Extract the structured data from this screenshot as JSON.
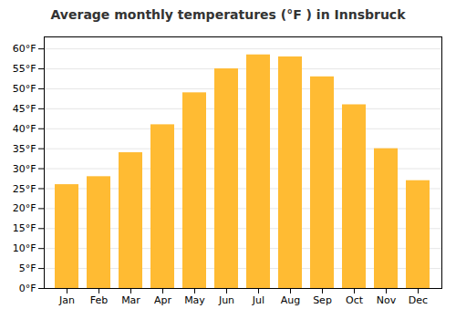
{
  "chart_data": {
    "type": "bar",
    "title": "Average monthly temperatures (°F ) in Innsbruck",
    "categories": [
      "Jan",
      "Feb",
      "Mar",
      "Apr",
      "May",
      "Jun",
      "Jul",
      "Aug",
      "Sep",
      "Oct",
      "Nov",
      "Dec"
    ],
    "values": [
      26,
      28,
      34,
      41,
      49,
      55,
      58.5,
      58,
      53,
      46,
      35,
      27
    ],
    "color": "#FFBB33",
    "ylim": [
      0,
      63
    ],
    "yticks": [
      {
        "value": 0,
        "label": "0°F"
      },
      {
        "value": 5,
        "label": "5°F"
      },
      {
        "value": 10,
        "label": "10°F"
      },
      {
        "value": 15,
        "label": "15°F"
      },
      {
        "value": 20,
        "label": "20°F"
      },
      {
        "value": 25,
        "label": "25°F"
      },
      {
        "value": 30,
        "label": "30°F"
      },
      {
        "value": 35,
        "label": "35°F"
      },
      {
        "value": 40,
        "label": "40°F"
      },
      {
        "value": 45,
        "label": "45°F"
      },
      {
        "value": 50,
        "label": "50°F"
      },
      {
        "value": 55,
        "label": "55°F"
      },
      {
        "value": 60,
        "label": "60°F"
      }
    ],
    "grid": true
  }
}
